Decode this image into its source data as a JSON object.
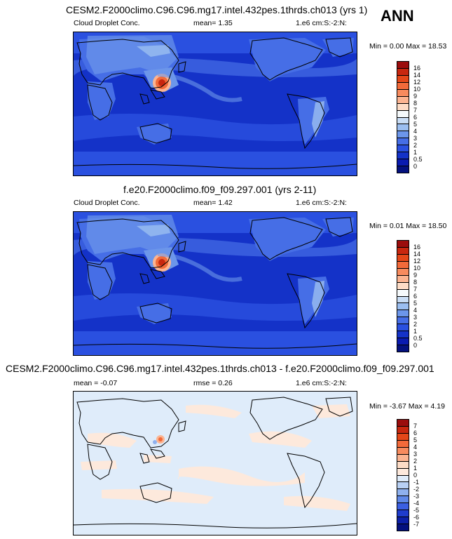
{
  "season": "ANN",
  "variable": "Cloud Droplet Conc.",
  "panels": [
    {
      "title": "CESM2.F2000climo.C96.C96.mg17.intel.432pes.1thrds.ch013 (yrs 1)",
      "variable": "Cloud Droplet Conc.",
      "stat": "mean=   1.35",
      "units": "1.e6 cm:S:-2:N:",
      "minmax": "Min =  0.00 Max = 18.53",
      "levels": [
        "16",
        "14",
        "12",
        "10",
        "9",
        "8",
        "7",
        "6",
        "5",
        "4",
        "3",
        "2",
        "1",
        "0.5",
        "0"
      ],
      "colors": [
        "#9b0d0d",
        "#c8270f",
        "#e44719",
        "#f26a3a",
        "#f78b5e",
        "#fbb491",
        "#fddcc6",
        "#f5f9fb",
        "#c9ddf5",
        "#9bbef0",
        "#6c96ea",
        "#466ee6",
        "#2a50e0",
        "#1432c8",
        "#0a1bb0",
        "#04117e"
      ]
    },
    {
      "title": "f.e20.F2000climo.f09_f09.297.001 (yrs 2-11)",
      "variable": "Cloud Droplet Conc.",
      "stat": "mean=   1.42",
      "units": "1.e6 cm:S:-2:N:",
      "minmax": "Min =  0.01 Max = 18.50",
      "levels": [
        "16",
        "14",
        "12",
        "10",
        "9",
        "8",
        "7",
        "6",
        "5",
        "4",
        "3",
        "2",
        "1",
        "0.5",
        "0"
      ],
      "colors": [
        "#9b0d0d",
        "#c8270f",
        "#e44719",
        "#f26a3a",
        "#f78b5e",
        "#fbb491",
        "#fddcc6",
        "#f5f9fb",
        "#c9ddf5",
        "#9bbef0",
        "#6c96ea",
        "#466ee6",
        "#2a50e0",
        "#1432c8",
        "#0a1bb0",
        "#04117e"
      ]
    },
    {
      "title": "CESM2.F2000climo.C96.C96.mg17.intel.432pes.1thrds.ch013 - f.e20.F2000climo.f09_f09.297.001",
      "stat_left": "mean =  -0.07",
      "stat": "rmse =   0.26",
      "units": "1.e6 cm:S:-2:N:",
      "minmax": "Min =  -3.67 Max =  4.19",
      "levels": [
        "7",
        "6",
        "5",
        "4",
        "3",
        "2",
        "1",
        "0",
        "-1",
        "-2",
        "-3",
        "-4",
        "-5",
        "-6",
        "-7"
      ],
      "colors": [
        "#9b0d0d",
        "#c8270f",
        "#e44719",
        "#f26a3a",
        "#f78b5e",
        "#fbb491",
        "#fddcc6",
        "#fde9dc",
        "#dfecfa",
        "#b9d1f4",
        "#8fb1ee",
        "#6089e8",
        "#3b5fe2",
        "#1e3ccd",
        "#0c20a8",
        "#04117e"
      ]
    }
  ]
}
